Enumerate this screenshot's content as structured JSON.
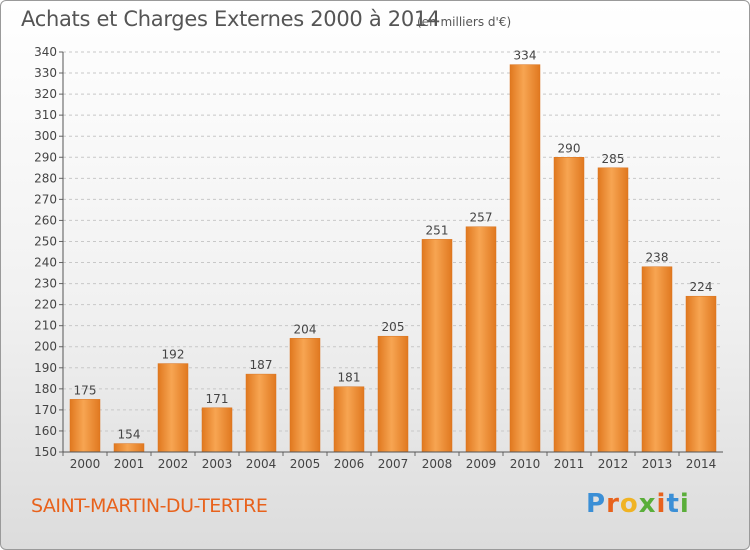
{
  "header": {
    "title": "Achats et Charges Externes 2000 à 2014",
    "unit": "(en milliers d'€)"
  },
  "footer": {
    "commune": "SAINT-MARTIN-DU-TERTRE",
    "logo_letters": [
      "P",
      "r",
      "o",
      "x",
      "i",
      "t",
      "i"
    ],
    "logo_colors": [
      "#3b8fd6",
      "#e8621c",
      "#f0b323",
      "#5aae3a",
      "#e8621c",
      "#3b8fd6",
      "#5aae3a"
    ]
  },
  "chart_data": {
    "type": "bar",
    "categories": [
      "2000",
      "2001",
      "2002",
      "2003",
      "2004",
      "2005",
      "2006",
      "2007",
      "2008",
      "2009",
      "2010",
      "2011",
      "2012",
      "2013",
      "2014"
    ],
    "values": [
      175,
      154,
      192,
      171,
      187,
      204,
      181,
      205,
      251,
      257,
      334,
      290,
      285,
      238,
      224
    ],
    "title": "Achats et Charges Externes 2000 à 2014",
    "subtitle": "(en milliers d'€)",
    "ylim": [
      150,
      340
    ],
    "yticks": [
      150,
      160,
      170,
      180,
      190,
      200,
      210,
      220,
      230,
      240,
      250,
      260,
      270,
      280,
      290,
      300,
      310,
      320,
      330,
      340
    ],
    "grid": true,
    "bar_color": "#f0902f",
    "bar_color_dark": "#d9731f"
  }
}
